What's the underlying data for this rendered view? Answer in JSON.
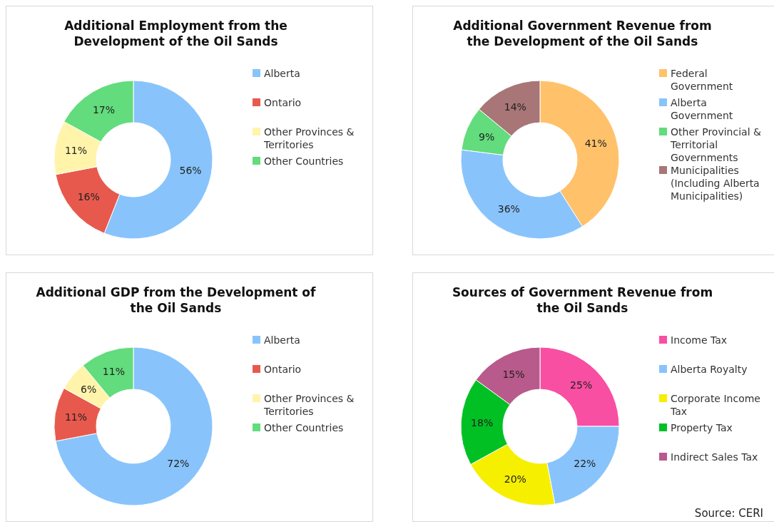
{
  "chart_data": [
    {
      "type": "donut",
      "title": "Additional Employment from the Development of the Oil Sands",
      "categories": [
        "Alberta",
        "Ontario",
        "Other Provinces & Territories",
        "Other Countries"
      ],
      "values": [
        56,
        16,
        11,
        17
      ],
      "value_labels": [
        "56%",
        "16%",
        "11%",
        "17%"
      ],
      "colors": [
        "#88c4fb",
        "#e8594d",
        "#fff4aa",
        "#62dc7c"
      ],
      "legend": "right"
    },
    {
      "type": "donut",
      "title": "Additional Government Revenue from the Development of the Oil Sands",
      "categories": [
        "Federal Government",
        "Alberta Government",
        "Other Provincial & Territorial Governments",
        "Municipalities (Including Alberta Municipalities)"
      ],
      "values": [
        41,
        36,
        9,
        14
      ],
      "value_labels": [
        "41%",
        "36%",
        "9%",
        "14%"
      ],
      "colors": [
        "#ffc16a",
        "#88c4fb",
        "#62dc7c",
        "#a87676"
      ],
      "legend": "right"
    },
    {
      "type": "donut",
      "title": "Additional GDP from the Development of the Oil Sands",
      "categories": [
        "Alberta",
        "Ontario",
        "Other Provinces & Territories",
        "Other Countries"
      ],
      "values": [
        72,
        11,
        6,
        11
      ],
      "value_labels": [
        "72%",
        "11%",
        "6%",
        "11%"
      ],
      "colors": [
        "#88c4fb",
        "#e8594d",
        "#fff4aa",
        "#62dc7c"
      ],
      "legend": "right"
    },
    {
      "type": "donut",
      "title": "Sources of Government Revenue from the Oil Sands",
      "categories": [
        "Income Tax",
        "Alberta Royalty",
        "Corporate Income Tax",
        "Property Tax",
        "Indirect Sales Tax"
      ],
      "values": [
        25,
        22,
        20,
        18,
        15
      ],
      "value_labels": [
        "25%",
        "22%",
        "20%",
        "18%",
        "15%"
      ],
      "colors": [
        "#f84fa2",
        "#88c4fb",
        "#f6ef00",
        "#00c023",
        "#b85a8c"
      ],
      "legend": "right",
      "annotations": [
        "Source: CERI"
      ]
    }
  ]
}
